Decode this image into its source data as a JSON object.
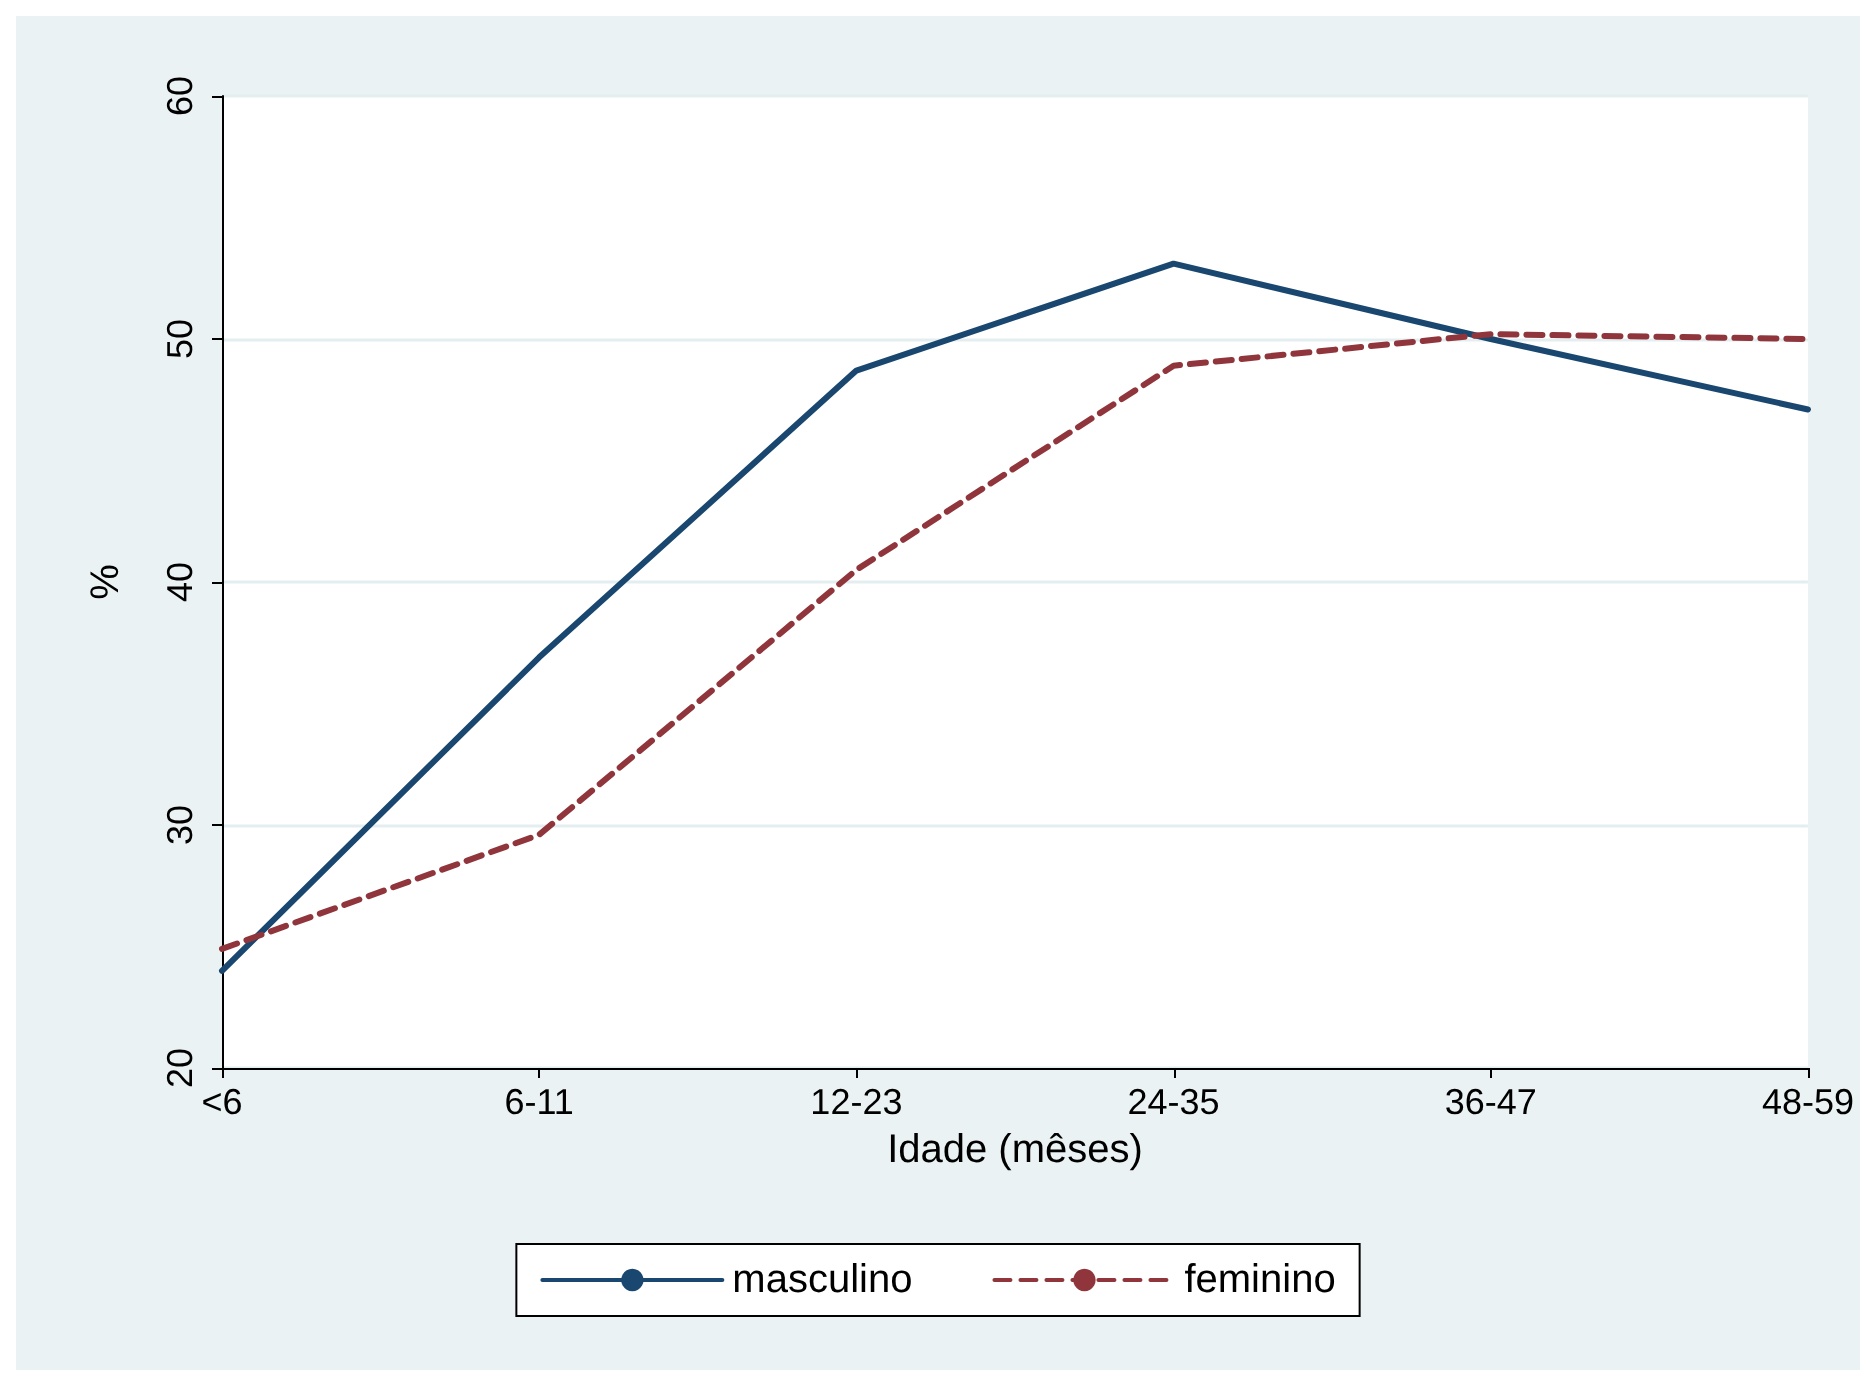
{
  "chart_data": {
    "type": "line",
    "xlabel": "Idade (mêses)",
    "ylabel": "%",
    "categories": [
      "<6",
      "6-11",
      "12-23",
      "24-35",
      "36-47",
      "48-59"
    ],
    "series": [
      {
        "name": "masculino",
        "color": "#1a476f",
        "values": [
          24.0,
          36.9,
          48.7,
          53.1,
          50.0,
          47.1
        ],
        "line_style": "solid"
      },
      {
        "name": "feminino",
        "color": "#90353b",
        "values": [
          24.9,
          29.6,
          40.5,
          48.9,
          50.2,
          50.0
        ],
        "line_style": "dashed"
      }
    ],
    "ylim": [
      20,
      60
    ],
    "yticks": [
      20,
      30,
      40,
      50,
      60
    ],
    "grid": "y",
    "legend": "bottom",
    "marker": "none"
  }
}
